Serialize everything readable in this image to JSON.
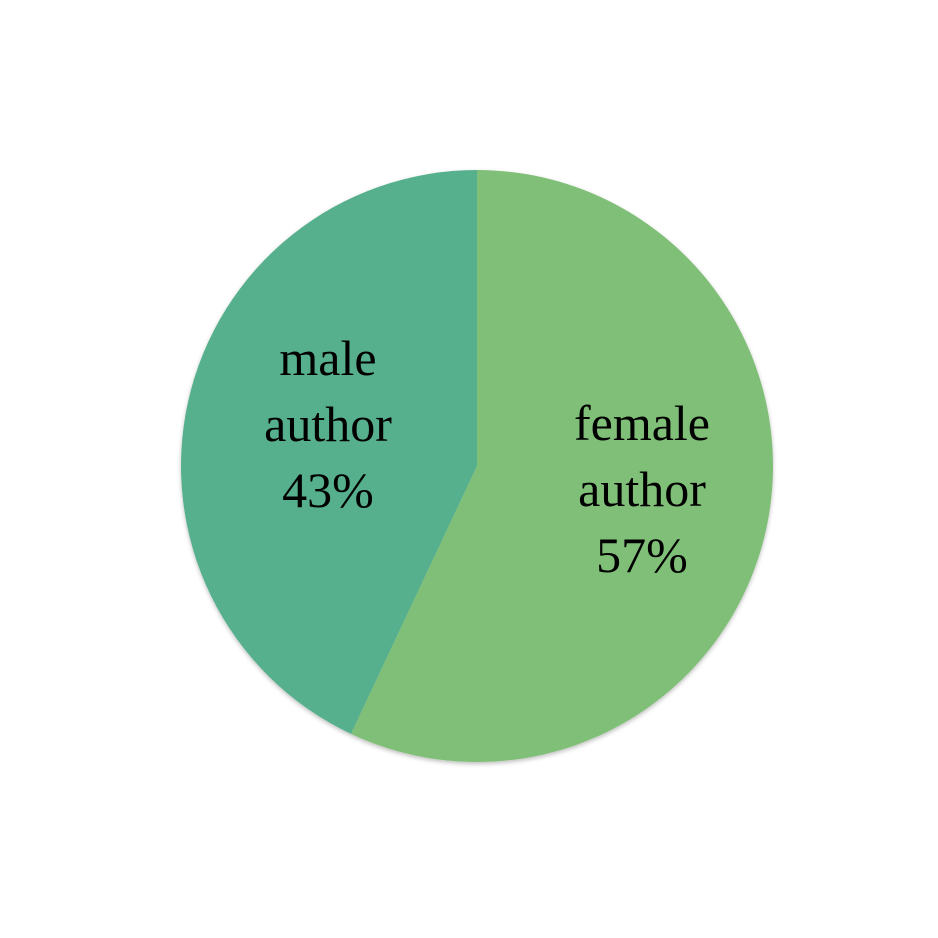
{
  "chart_data": {
    "type": "pie",
    "slices": [
      {
        "label_line1": "female",
        "label_line2": "author",
        "value": 57,
        "value_text": "57%",
        "color": "#80BF77"
      },
      {
        "label_line1": "male",
        "label_line2": "author",
        "value": 43,
        "value_text": "43%",
        "color": "#57B08D"
      }
    ],
    "start_direction": "top, clockwise"
  }
}
